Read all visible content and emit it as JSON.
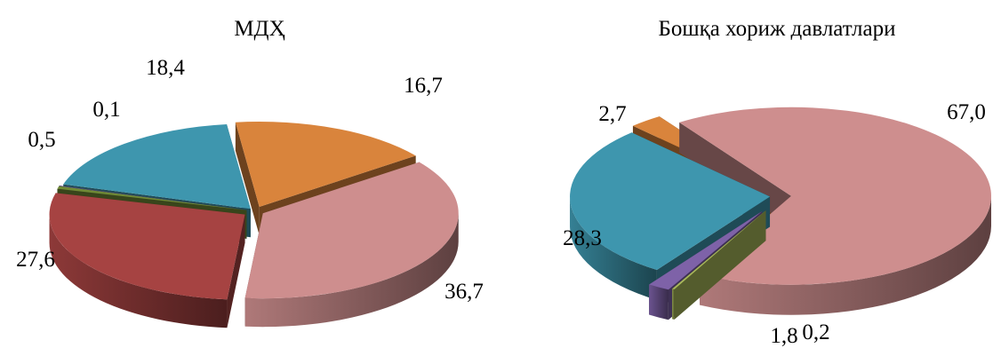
{
  "chart_data": [
    {
      "type": "pie",
      "title": "МДҲ",
      "slices": [
        {
          "label": "16,7",
          "value": 16.7,
          "color": "#D9843C"
        },
        {
          "label": "36,7",
          "value": 36.7,
          "color": "#CE8E8E"
        },
        {
          "label": "27,6",
          "value": 27.6,
          "color": "#A64342"
        },
        {
          "label": "0,5",
          "value": 0.5,
          "color": "#6F8A36"
        },
        {
          "label": "0,1",
          "value": 0.1,
          "color": "#6A5A96"
        },
        {
          "label": "18,4",
          "value": 18.4,
          "color": "#3E96AE"
        }
      ]
    },
    {
      "type": "pie",
      "title": "Бошқа хориж давлатлари",
      "slices": [
        {
          "label": "67,0",
          "value": 67.0,
          "color": "#CE8E8E"
        },
        {
          "label": "0,2",
          "value": 0.2,
          "color": "#A8B85A"
        },
        {
          "label": "1,8",
          "value": 1.8,
          "color": "#7E62A8"
        },
        {
          "label": "28,3",
          "value": 28.3,
          "color": "#3E96AE"
        },
        {
          "label": "2,7",
          "value": 2.7,
          "color": "#D9843C"
        }
      ]
    }
  ]
}
